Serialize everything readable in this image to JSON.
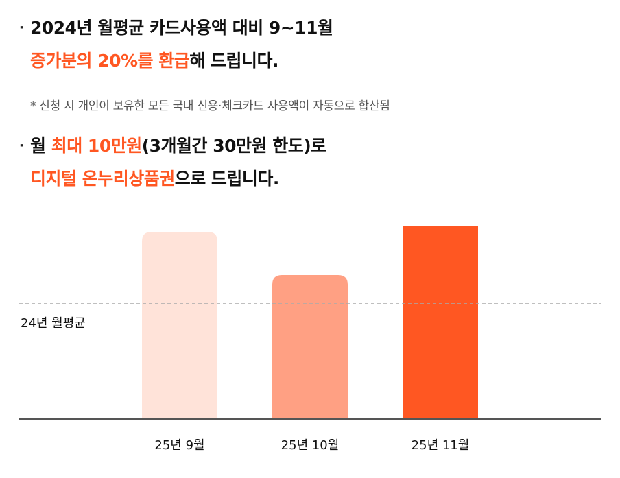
{
  "headline1": {
    "bullet": "·",
    "line1": "2024년 월평균 카드사용액 대비 9~11월",
    "line2_highlight": "증가분의 20%를 환급",
    "line2_rest": "해 드립니다."
  },
  "note": "* 신청 시 개인이 보유한 모든 국내 신용·체크카드 사용액이 자동으로 합산됨",
  "headline2": {
    "bullet": "·",
    "line1_prefix": "월 ",
    "line1_highlight": "최대 10만원",
    "line1_rest": "(3개월간 30만원 한도)로",
    "line2_highlight": "디지털 온누리상품권",
    "line2_rest": "으로 드립니다."
  },
  "colors": {
    "accent": "#ff5722",
    "bar_light": "#ffe3d9",
    "bar_mid": "#ffa083",
    "bar_strong": "#ff5722",
    "reference_line": "#aaaaaa",
    "baseline": "#555555"
  },
  "chart_data": {
    "type": "bar",
    "categories": [
      "25년 9월",
      "25년 10월",
      "25년 11월"
    ],
    "values": [
      78,
      60,
      88
    ],
    "bar_colors": [
      "#ffe3d9",
      "#ffa083",
      "#ff5722"
    ],
    "reference_line": {
      "label": "24년 월평균",
      "value": 48
    },
    "ylim": [
      0,
      100
    ],
    "title": "",
    "xlabel": "",
    "ylabel": "",
    "grid": false,
    "y_axis_visible": false
  }
}
